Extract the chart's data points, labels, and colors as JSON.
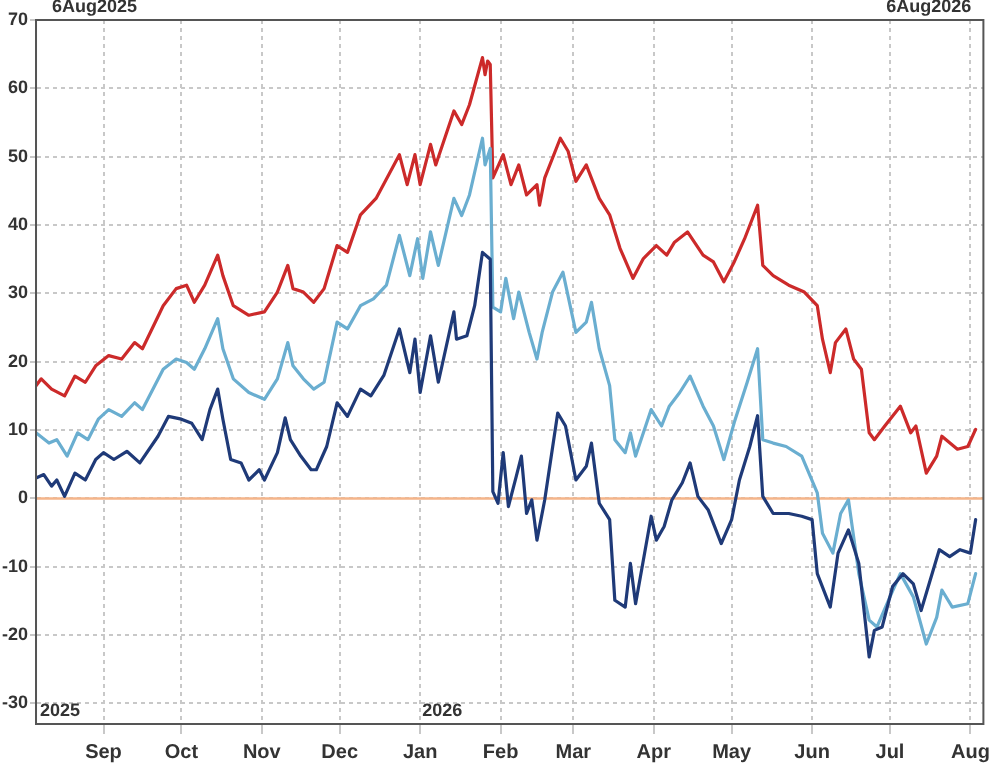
{
  "chart_data": {
    "type": "line",
    "marker": "none",
    "grid": true,
    "legend": false,
    "annotations": [
      "6Aug2025",
      "6Aug2026",
      "2025",
      "2026"
    ],
    "xlim": [
      "2025-08-06",
      "2026-08-06"
    ],
    "xticks": [
      {
        "value": "2025-09-01",
        "label": "Sep"
      },
      {
        "value": "2025-10-01",
        "label": "Oct"
      },
      {
        "value": "2025-11-01",
        "label": "Nov"
      },
      {
        "value": "2025-12-01",
        "label": "Dec"
      },
      {
        "value": "2026-01-01",
        "label": "Jan"
      },
      {
        "value": "2026-02-01",
        "label": "Feb"
      },
      {
        "value": "2026-03-01",
        "label": "Mar"
      },
      {
        "value": "2026-04-01",
        "label": "Apr"
      },
      {
        "value": "2026-05-01",
        "label": "May"
      },
      {
        "value": "2026-06-01",
        "label": "Jun"
      },
      {
        "value": "2026-07-01",
        "label": "Jul"
      },
      {
        "value": "2026-08-01",
        "label": "Aug"
      }
    ],
    "ylim": [
      -33,
      70
    ],
    "yticks": [
      -30,
      -20,
      -10,
      0,
      10,
      20,
      30,
      40,
      50,
      60,
      70
    ],
    "ref_lines": [
      {
        "axis": "y",
        "value": 0,
        "color": "#f5b58a"
      }
    ],
    "series": [
      {
        "color": "#cc2a2a",
        "x": [
          "2025-08-06",
          "2025-08-08",
          "2025-08-12",
          "2025-08-17",
          "2025-08-21",
          "2025-08-25",
          "2025-08-29",
          "2025-09-03",
          "2025-09-08",
          "2025-09-13",
          "2025-09-16",
          "2025-09-24",
          "2025-09-29",
          "2025-10-03",
          "2025-10-06",
          "2025-10-10",
          "2025-10-15",
          "2025-10-17",
          "2025-10-21",
          "2025-10-27",
          "2025-11-02",
          "2025-11-07",
          "2025-11-11",
          "2025-11-13",
          "2025-11-17",
          "2025-11-21",
          "2025-11-25",
          "2025-11-30",
          "2025-12-04",
          "2025-12-09",
          "2025-12-15",
          "2025-12-24",
          "2025-12-27",
          "2025-12-30",
          "2026-01-01",
          "2026-01-05",
          "2026-01-07",
          "2026-01-14",
          "2026-01-17",
          "2026-01-20",
          "2026-01-25",
          "2026-01-26",
          "2026-01-27",
          "2026-01-28",
          "2026-01-29",
          "2026-02-02",
          "2026-02-05",
          "2026-02-08",
          "2026-02-11",
          "2026-02-15",
          "2026-02-16",
          "2026-02-18",
          "2026-02-24",
          "2026-02-27",
          "2026-03-02",
          "2026-03-06",
          "2026-03-11",
          "2026-03-15",
          "2026-03-19",
          "2026-03-24",
          "2026-03-28",
          "2026-04-02",
          "2026-04-06",
          "2026-04-09",
          "2026-04-14",
          "2026-04-20",
          "2026-04-24",
          "2026-04-28",
          "2026-05-02",
          "2026-05-06",
          "2026-05-11",
          "2026-05-13",
          "2026-05-17",
          "2026-05-23",
          "2026-05-29",
          "2026-06-03",
          "2026-06-05",
          "2026-06-08",
          "2026-06-10",
          "2026-06-14",
          "2026-06-17",
          "2026-06-20",
          "2026-06-23",
          "2026-06-25",
          "2026-06-29",
          "2026-07-05",
          "2026-07-09",
          "2026-07-11",
          "2026-07-15",
          "2026-07-19",
          "2026-07-21",
          "2026-07-27",
          "2026-07-31",
          "2026-08-03"
        ],
        "values": [
          16.5,
          17.5,
          16,
          15,
          17.9,
          17,
          19.4,
          20.9,
          20.4,
          22.8,
          21.9,
          28.2,
          30.7,
          31.2,
          28.7,
          31.2,
          35.6,
          32.6,
          28.2,
          26.8,
          27.3,
          30.2,
          34.1,
          30.7,
          30.2,
          28.7,
          30.7,
          37,
          36,
          41.5,
          43.9,
          50.3,
          45.9,
          50.3,
          45.9,
          51.8,
          48.8,
          56.7,
          54.7,
          57.6,
          64.5,
          62,
          64,
          63.5,
          46.9,
          50.3,
          45.9,
          48.8,
          44.4,
          45.9,
          42.9,
          46.9,
          52.7,
          50.8,
          46.4,
          48.8,
          43.9,
          41.5,
          36.6,
          32.2,
          35.1,
          37,
          35.6,
          37.5,
          39,
          35.6,
          34.6,
          31.7,
          34.6,
          38,
          42.9,
          34.1,
          32.6,
          31.2,
          30.2,
          28.2,
          23.3,
          18.4,
          22.8,
          24.8,
          20.4,
          18.9,
          9.6,
          8.6,
          10.6,
          13.5,
          9.6,
          10.6,
          3.7,
          6.2,
          9.1,
          7.2,
          7.6,
          10.1
        ]
      },
      {
        "color": "#6aaed0",
        "x": [
          "2025-08-06",
          "2025-08-11",
          "2025-08-14",
          "2025-08-18",
          "2025-08-22",
          "2025-08-26",
          "2025-08-30",
          "2025-09-03",
          "2025-09-08",
          "2025-09-13",
          "2025-09-16",
          "2025-09-24",
          "2025-09-29",
          "2025-10-03",
          "2025-10-06",
          "2025-10-10",
          "2025-10-15",
          "2025-10-17",
          "2025-10-21",
          "2025-10-27",
          "2025-11-02",
          "2025-11-07",
          "2025-11-11",
          "2025-11-13",
          "2025-11-17",
          "2025-11-21",
          "2025-11-25",
          "2025-11-30",
          "2025-12-04",
          "2025-12-09",
          "2025-12-14",
          "2025-12-19",
          "2025-12-24",
          "2025-12-28",
          "2025-12-31",
          "2026-01-02",
          "2026-01-05",
          "2026-01-08",
          "2026-01-14",
          "2026-01-17",
          "2026-01-20",
          "2026-01-25",
          "2026-01-26",
          "2026-01-28",
          "2026-01-29",
          "2026-02-01",
          "2026-02-03",
          "2026-02-06",
          "2026-02-08",
          "2026-02-12",
          "2026-02-15",
          "2026-02-17",
          "2026-02-21",
          "2026-02-25",
          "2026-03-02",
          "2026-03-06",
          "2026-03-08",
          "2026-03-11",
          "2026-03-15",
          "2026-03-17",
          "2026-03-21",
          "2026-03-23",
          "2026-03-25",
          "2026-03-31",
          "2026-04-04",
          "2026-04-07",
          "2026-04-11",
          "2026-04-15",
          "2026-04-20",
          "2026-04-24",
          "2026-04-28",
          "2026-05-02",
          "2026-05-07",
          "2026-05-11",
          "2026-05-13",
          "2026-05-17",
          "2026-05-22",
          "2026-05-28",
          "2026-06-03",
          "2026-06-05",
          "2026-06-09",
          "2026-06-12",
          "2026-06-15",
          "2026-06-19",
          "2026-06-23",
          "2026-06-26",
          "2026-07-01",
          "2026-07-05",
          "2026-07-10",
          "2026-07-15",
          "2026-07-19",
          "2026-07-21",
          "2026-07-25",
          "2026-07-31",
          "2026-08-03"
        ],
        "values": [
          9.6,
          8.1,
          8.6,
          6.2,
          9.6,
          8.6,
          11.6,
          13,
          12,
          14,
          13,
          18.9,
          20.4,
          19.9,
          18.9,
          21.9,
          26.3,
          21.9,
          17.5,
          15.5,
          14.5,
          17.5,
          22.8,
          19.4,
          17.5,
          16,
          17,
          25.8,
          24.8,
          28.2,
          29.2,
          31.2,
          38.5,
          32.6,
          38,
          32.2,
          39,
          34.1,
          43.9,
          41.4,
          44.4,
          52.7,
          48.8,
          51.2,
          28,
          27.3,
          32.2,
          26.3,
          30.2,
          24.3,
          20.4,
          24.3,
          30.2,
          33.1,
          24.3,
          25.8,
          28.7,
          21.9,
          16.5,
          8.6,
          6.7,
          9.6,
          6.2,
          13,
          10.6,
          13.5,
          15.5,
          17.9,
          13.5,
          10.6,
          5.7,
          11.1,
          17,
          21.9,
          8.6,
          8.1,
          7.6,
          6.2,
          0.8,
          -5.1,
          -8,
          -2.2,
          -0.2,
          -11,
          -17.8,
          -18.8,
          -14.4,
          -11,
          -14.4,
          -21.3,
          -17.4,
          -13.4,
          -15.9,
          -15.4,
          -11
        ]
      },
      {
        "color": "#1f3a78",
        "x": [
          "2025-08-06",
          "2025-08-09",
          "2025-08-12",
          "2025-08-14",
          "2025-08-17",
          "2025-08-21",
          "2025-08-25",
          "2025-08-29",
          "2025-09-01",
          "2025-09-05",
          "2025-09-10",
          "2025-09-15",
          "2025-09-22",
          "2025-09-26",
          "2025-10-01",
          "2025-10-05",
          "2025-10-09",
          "2025-10-12",
          "2025-10-15",
          "2025-10-17",
          "2025-10-20",
          "2025-10-24",
          "2025-10-27",
          "2025-10-31",
          "2025-11-02",
          "2025-11-07",
          "2025-11-10",
          "2025-11-12",
          "2025-11-16",
          "2025-11-20",
          "2025-11-22",
          "2025-11-26",
          "2025-11-30",
          "2025-12-04",
          "2025-12-09",
          "2025-12-13",
          "2025-12-18",
          "2025-12-24",
          "2025-12-28",
          "2025-12-30",
          "2026-01-01",
          "2026-01-05",
          "2026-01-08",
          "2026-01-14",
          "2026-01-15",
          "2026-01-19",
          "2026-01-22",
          "2026-01-25",
          "2026-01-28",
          "2026-01-29",
          "2026-01-31",
          "2026-02-02",
          "2026-02-04",
          "2026-02-07",
          "2026-02-09",
          "2026-02-11",
          "2026-02-13",
          "2026-02-15",
          "2026-02-18",
          "2026-02-23",
          "2026-02-26",
          "2026-03-02",
          "2026-03-06",
          "2026-03-08",
          "2026-03-11",
          "2026-03-15",
          "2026-03-17",
          "2026-03-21",
          "2026-03-23",
          "2026-03-25",
          "2026-03-31",
          "2026-04-02",
          "2026-04-05",
          "2026-04-08",
          "2026-04-12",
          "2026-04-15",
          "2026-04-18",
          "2026-04-22",
          "2026-04-27",
          "2026-05-01",
          "2026-05-04",
          "2026-05-08",
          "2026-05-11",
          "2026-05-13",
          "2026-05-17",
          "2026-05-23",
          "2026-05-28",
          "2026-06-01",
          "2026-06-03",
          "2026-06-08",
          "2026-06-11",
          "2026-06-15",
          "2026-06-19",
          "2026-06-23",
          "2026-06-25",
          "2026-06-28",
          "2026-07-02",
          "2026-07-06",
          "2026-07-10",
          "2026-07-13",
          "2026-07-20",
          "2026-07-24",
          "2026-07-28",
          "2026-08-01",
          "2026-08-03"
        ],
        "values": [
          3,
          3.5,
          1.8,
          2.7,
          0.3,
          3.7,
          2.7,
          5.7,
          6.7,
          5.7,
          6.9,
          5.2,
          9.1,
          12,
          11.6,
          11,
          8.6,
          13,
          16,
          11.6,
          5.7,
          5.2,
          2.7,
          4.2,
          2.7,
          6.7,
          11.8,
          8.6,
          6.2,
          4.2,
          4.2,
          7.6,
          14,
          12,
          16,
          15,
          18,
          24.8,
          18.4,
          23.3,
          15.5,
          23.8,
          17,
          27.3,
          23.3,
          23.8,
          28.2,
          36,
          35,
          1,
          -0.7,
          6.7,
          -1.2,
          3.2,
          6.2,
          -2.2,
          -0.2,
          -6.1,
          -0.2,
          12.5,
          10.6,
          2.7,
          4.7,
          8.1,
          -0.7,
          -3.1,
          -14.9,
          -15.9,
          -9.5,
          -15.4,
          -2.6,
          -6.1,
          -4.1,
          -0.2,
          2.3,
          5.2,
          0.3,
          -1.7,
          -6.6,
          -3.1,
          2.7,
          7.6,
          12.1,
          0.3,
          -2.2,
          -2.2,
          -2.6,
          -3.1,
          -11,
          -15.9,
          -8,
          -4.6,
          -9.5,
          -23.2,
          -19.3,
          -18.8,
          -12.9,
          -11,
          -12.5,
          -16.4,
          -7.5,
          -8.5,
          -7.5,
          -8,
          -3.1
        ]
      }
    ]
  }
}
